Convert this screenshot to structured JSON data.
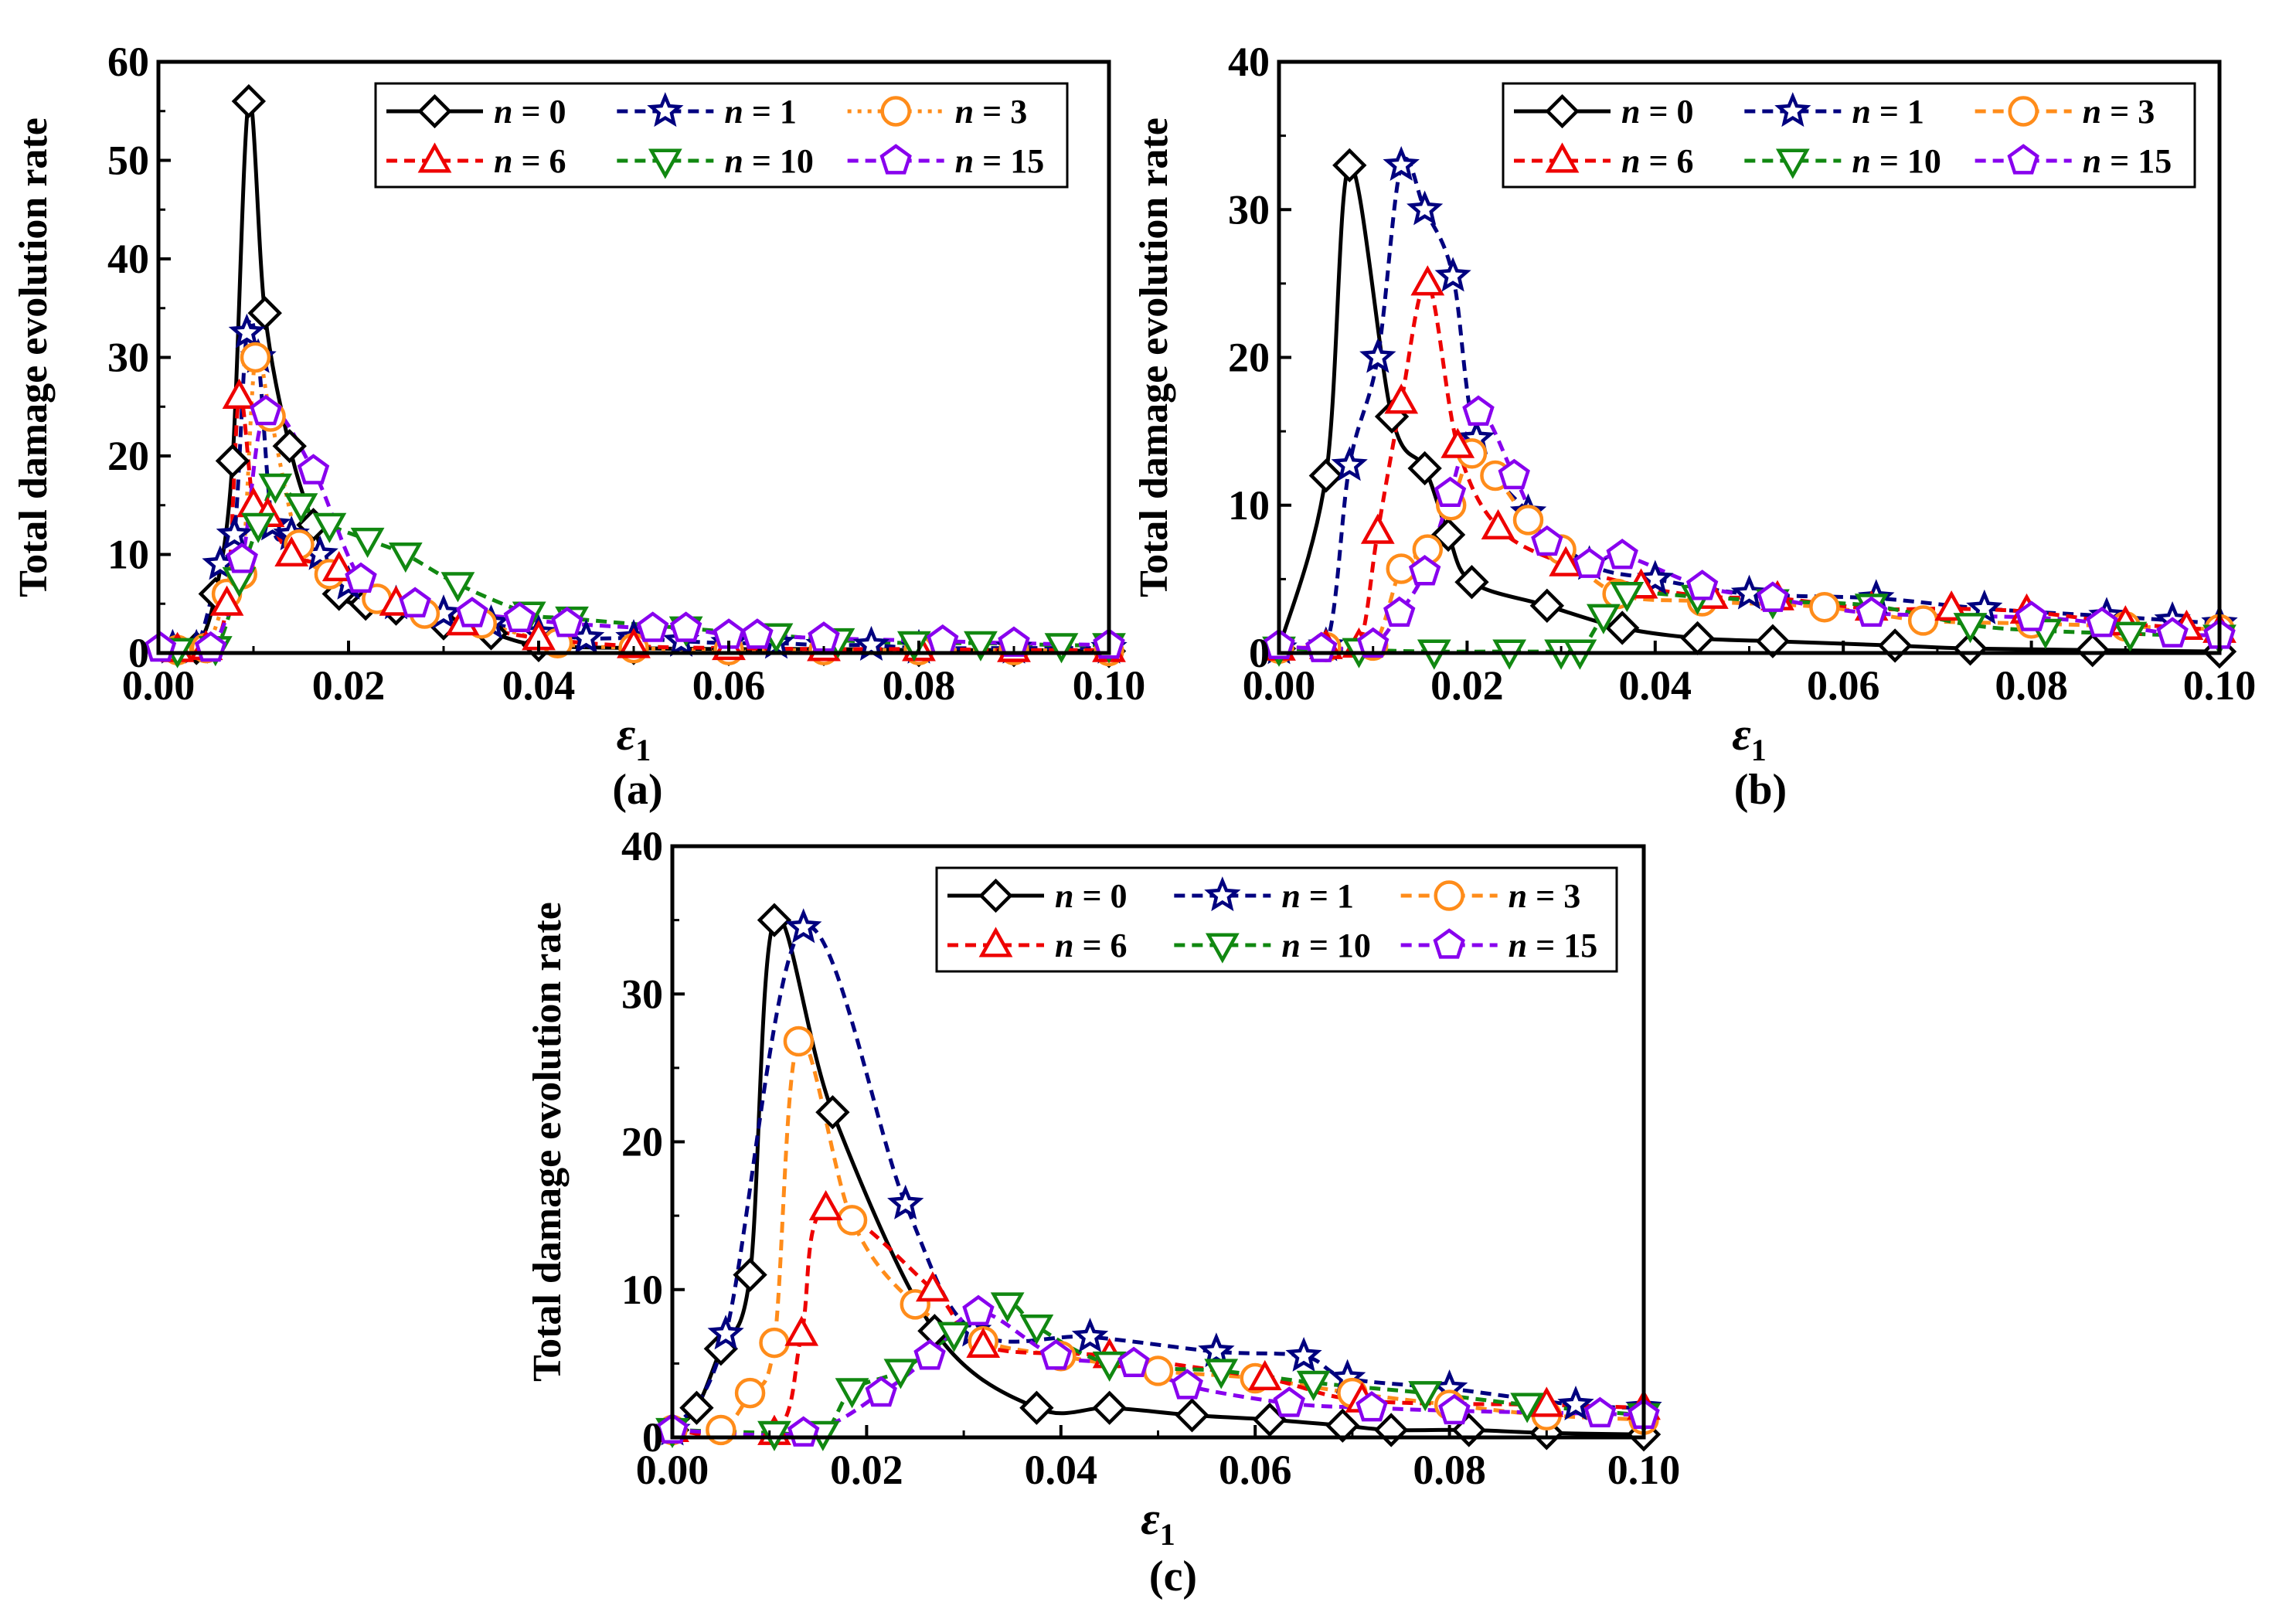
{
  "figure_labels": [
    "(a)",
    "(b)",
    "(c)"
  ],
  "chart_data": [
    {
      "type": "line",
      "panel": "(a)",
      "ylabel": "Total damage evolution rate",
      "xlabel": "ε",
      "xlabel_sub": "1",
      "xlim": [
        0,
        0.1
      ],
      "ylim": [
        0,
        60
      ],
      "xticks": [
        "0.00",
        "0.02",
        "0.04",
        "0.06",
        "0.08",
        "0.10"
      ],
      "yticks": [
        "0",
        "10",
        "20",
        "30",
        "40",
        "50",
        "60"
      ],
      "legend_position": "top-right",
      "series": [
        {
          "name": "n = 0",
          "var": "n",
          "value": "0",
          "color": "#000000",
          "marker": "diamond",
          "dash": "solid",
          "x": [
            0.002,
            0.004,
            0.006,
            0.0078,
            0.0095,
            0.0112,
            0.0138,
            0.0163,
            0.019,
            0.0218,
            0.025,
            0.03,
            0.035,
            0.04,
            0.05,
            0.06,
            0.07,
            0.08,
            0.09,
            0.1
          ],
          "y": [
            0.3,
            0.5,
            6,
            19.5,
            56,
            34.5,
            21,
            13,
            6,
            5,
            4.5,
            3,
            2,
            0.8,
            0.5,
            0.4,
            0.4,
            0.3,
            0.3,
            0.2
          ]
        },
        {
          "name": "n = 1",
          "var": "n",
          "value": "1",
          "color": "#00007f",
          "marker": "star",
          "dash": "dashed",
          "x": [
            0.0015,
            0.004,
            0.0065,
            0.008,
            0.0093,
            0.0105,
            0.012,
            0.014,
            0.017,
            0.02,
            0.025,
            0.03,
            0.035,
            0.04,
            0.045,
            0.05,
            0.055,
            0.06,
            0.065,
            0.07,
            0.075,
            0.08,
            0.09,
            0.1
          ],
          "y": [
            0.5,
            0.5,
            9,
            12,
            32.5,
            30,
            13,
            12,
            10,
            7,
            5,
            4,
            3,
            2,
            1.5,
            1.5,
            1.2,
            1,
            1,
            0.8,
            0.8,
            0.5,
            0.5,
            0.5
          ]
        },
        {
          "name": "n = 3",
          "var": "n",
          "value": "3",
          "color": "#ff8c1a",
          "marker": "circle",
          "dash": "dotted",
          "x": [
            0.002,
            0.005,
            0.0072,
            0.0088,
            0.0102,
            0.0118,
            0.0148,
            0.018,
            0.023,
            0.028,
            0.034,
            0.042,
            0.05,
            0.06,
            0.07,
            0.08,
            0.09,
            0.1
          ],
          "y": [
            0.3,
            0.5,
            6,
            8,
            30,
            24,
            11,
            8,
            5.5,
            4,
            3,
            1,
            0.5,
            0.3,
            0.3,
            0.3,
            0.3,
            0.2
          ]
        },
        {
          "name": "n = 6",
          "var": "n",
          "value": "6",
          "color": "#ee0000",
          "marker": "triangle-up",
          "dash": "dashed",
          "x": [
            0.002,
            0.005,
            0.0072,
            0.0085,
            0.01,
            0.0115,
            0.014,
            0.019,
            0.025,
            0.032,
            0.04,
            0.05,
            0.06,
            0.07,
            0.08,
            0.09,
            0.1
          ],
          "y": [
            0.3,
            0.5,
            5,
            26,
            15,
            14,
            10,
            8.5,
            5,
            3,
            1.5,
            0.7,
            0.5,
            0.4,
            0.4,
            0.3,
            0.3
          ]
        },
        {
          "name": "n = 10",
          "var": "n",
          "value": "10",
          "color": "#118811",
          "marker": "triangle-down",
          "dash": "dashed",
          "x": [
            0.002,
            0.006,
            0.0085,
            0.0105,
            0.0123,
            0.015,
            0.018,
            0.022,
            0.026,
            0.0315,
            0.039,
            0.0435,
            0.0555,
            0.065,
            0.0715,
            0.0795,
            0.0865,
            0.095,
            0.1
          ],
          "y": [
            0.3,
            0.5,
            7.5,
            13,
            17,
            15,
            13,
            11.5,
            10,
            7,
            4,
            3.5,
            2.5,
            1.8,
            1.3,
            1,
            1,
            0.8,
            0.8
          ]
        },
        {
          "name": "n = 15",
          "var": "n",
          "value": "15",
          "color": "#8800ee",
          "marker": "pentagon",
          "dash": "dashed",
          "x": [
            0.0002,
            0.0055,
            0.0088,
            0.0113,
            0.0163,
            0.0213,
            0.027,
            0.033,
            0.038,
            0.043,
            0.052,
            0.0555,
            0.06,
            0.063,
            0.07,
            0.0825,
            0.09,
            0.1
          ],
          "y": [
            0.5,
            0.5,
            9.5,
            24.5,
            18.5,
            7.5,
            5,
            4,
            3.5,
            3,
            2.5,
            2.5,
            1.8,
            1.8,
            1.5,
            1.2,
            1,
            0.8
          ]
        }
      ]
    },
    {
      "type": "line",
      "panel": "(b)",
      "ylabel": "Total damage evolution rate",
      "xlabel": "ε",
      "xlabel_sub": "1",
      "xlim": [
        0,
        0.1
      ],
      "ylim": [
        0,
        40
      ],
      "xticks": [
        "0.00",
        "0.02",
        "0.04",
        "0.06",
        "0.08",
        "0.10"
      ],
      "yticks": [
        "0",
        "10",
        "20",
        "30",
        "40"
      ],
      "legend_position": "top-right",
      "series": [
        {
          "name": "n = 0",
          "var": "n",
          "value": "0",
          "color": "#000000",
          "marker": "diamond",
          "dash": "solid",
          "x": [
            0.0,
            0.005,
            0.0075,
            0.012,
            0.0155,
            0.018,
            0.0205,
            0.0285,
            0.0365,
            0.0445,
            0.0525,
            0.0655,
            0.0735,
            0.0865,
            0.1
          ],
          "y": [
            0.3,
            12,
            33,
            16,
            12.5,
            8,
            4.8,
            3.2,
            1.7,
            1,
            0.8,
            0.5,
            0.3,
            0.2,
            0.1
          ]
        },
        {
          "name": "n = 1",
          "var": "n",
          "value": "1",
          "color": "#00007f",
          "marker": "star",
          "dash": "dashed",
          "x": [
            0.0,
            0.005,
            0.0075,
            0.0105,
            0.013,
            0.0155,
            0.0185,
            0.021,
            0.0265,
            0.033,
            0.04,
            0.05,
            0.0635,
            0.075,
            0.088,
            0.095,
            0.1
          ],
          "y": [
            0.3,
            0.5,
            12.7,
            20,
            33,
            30,
            25.5,
            14.5,
            9.5,
            6,
            5,
            4,
            3.7,
            3,
            2.5,
            2.2,
            2
          ]
        },
        {
          "name": "n = 3",
          "var": "n",
          "value": "3",
          "color": "#ff8c1a",
          "marker": "circle",
          "dash": "dashed",
          "x": [
            0.0,
            0.005,
            0.01,
            0.013,
            0.0158,
            0.0183,
            0.0205,
            0.023,
            0.0265,
            0.03,
            0.036,
            0.045,
            0.058,
            0.0685,
            0.08,
            0.09,
            0.1
          ],
          "y": [
            0.3,
            0.4,
            0.5,
            5.7,
            7,
            10,
            13.5,
            12,
            9,
            7,
            4,
            3.5,
            3.1,
            2.2,
            2,
            1.8,
            1.6
          ]
        },
        {
          "name": "n = 6",
          "var": "n",
          "value": "6",
          "color": "#ee0000",
          "marker": "triangle-up",
          "dash": "dashed",
          "x": [
            0.0,
            0.005,
            0.0085,
            0.0105,
            0.013,
            0.0158,
            0.019,
            0.0233,
            0.0305,
            0.0385,
            0.046,
            0.053,
            0.063,
            0.0715,
            0.0795,
            0.09,
            0.0965,
            0.1
          ],
          "y": [
            0.3,
            0.4,
            0.5,
            8.2,
            17,
            25,
            14,
            8.5,
            6,
            4.5,
            3.8,
            3.7,
            3,
            3,
            2.8,
            2,
            1.7,
            1.5
          ]
        },
        {
          "name": "n = 10",
          "var": "n",
          "value": "10",
          "color": "#118811",
          "marker": "triangle-down",
          "dash": "dashed",
          "x": [
            0.0,
            0.0085,
            0.0165,
            0.0245,
            0.03,
            0.032,
            0.0345,
            0.037,
            0.0445,
            0.0525,
            0.063,
            0.0735,
            0.0815,
            0.0905,
            0.1
          ],
          "y": [
            0.3,
            0.2,
            0.1,
            0.1,
            0.1,
            0.1,
            2.5,
            4,
            3.8,
            3.5,
            3.2,
            1.9,
            1.5,
            1.3,
            1.1
          ]
        },
        {
          "name": "n = 15",
          "var": "n",
          "value": "15",
          "color": "#8800ee",
          "marker": "pentagon",
          "dash": "dashed",
          "x": [
            0.0,
            0.0045,
            0.01,
            0.0128,
            0.0155,
            0.0182,
            0.0212,
            0.025,
            0.0285,
            0.033,
            0.0365,
            0.045,
            0.0525,
            0.063,
            0.08,
            0.0875,
            0.095,
            0.1
          ],
          "y": [
            0.5,
            0.3,
            0.6,
            2.7,
            5.5,
            10.8,
            16.3,
            12,
            7.5,
            6,
            6.6,
            4.5,
            3.7,
            2.7,
            2.4,
            2,
            1.3,
            1.2
          ]
        }
      ]
    },
    {
      "type": "line",
      "panel": "(c)",
      "ylabel": "Total damage evolution rate",
      "xlabel": "ε",
      "xlabel_sub": "1",
      "xlim": [
        0,
        0.1
      ],
      "ylim": [
        0,
        40
      ],
      "xticks": [
        "0.00",
        "0.02",
        "0.04",
        "0.06",
        "0.08",
        "0.10"
      ],
      "yticks": [
        "0",
        "10",
        "20",
        "30",
        "40"
      ],
      "legend_position": "top-right",
      "series": [
        {
          "name": "n = 0",
          "var": "n",
          "value": "0",
          "color": "#000000",
          "marker": "diamond",
          "dash": "solid",
          "x": [
            0.0,
            0.0025,
            0.005,
            0.008,
            0.0105,
            0.0165,
            0.027,
            0.0375,
            0.045,
            0.0535,
            0.0615,
            0.069,
            0.074,
            0.082,
            0.09,
            0.1
          ],
          "y": [
            0.5,
            2,
            6,
            11,
            35,
            22,
            7.2,
            2,
            2,
            1.5,
            1.2,
            0.8,
            0.5,
            0.5,
            0.3,
            0.2
          ]
        },
        {
          "name": "n = 1",
          "var": "n",
          "value": "1",
          "color": "#00007f",
          "marker": "star",
          "dash": "dashed",
          "x": [
            0.0,
            0.0055,
            0.0135,
            0.024,
            0.031,
            0.043,
            0.056,
            0.065,
            0.0695,
            0.08,
            0.093,
            0.1
          ],
          "y": [
            0.5,
            7,
            34.5,
            15.8,
            7.2,
            6.8,
            5.8,
            5.5,
            4,
            3.3,
            2.2,
            2
          ]
        },
        {
          "name": "n = 3",
          "var": "n",
          "value": "3",
          "color": "#ff8c1a",
          "marker": "circle",
          "dash": "dashed",
          "x": [
            0.0,
            0.005,
            0.008,
            0.0105,
            0.013,
            0.0185,
            0.025,
            0.032,
            0.04,
            0.05,
            0.06,
            0.07,
            0.08,
            0.09,
            0.1
          ],
          "y": [
            0.5,
            0.5,
            3,
            6.4,
            26.8,
            14.7,
            9,
            6.5,
            5.5,
            4.5,
            4,
            3,
            2.2,
            1.5,
            1.2
          ]
        },
        {
          "name": "n = 6",
          "var": "n",
          "value": "6",
          "color": "#ee0000",
          "marker": "triangle-up",
          "dash": "dashed",
          "x": [
            0.0,
            0.0105,
            0.0133,
            0.0158,
            0.0268,
            0.032,
            0.045,
            0.061,
            0.071,
            0.09,
            0.1
          ],
          "y": [
            0.5,
            0.3,
            7,
            15.5,
            10,
            6.2,
            5.5,
            4,
            2.5,
            2.2,
            2
          ]
        },
        {
          "name": "n = 10",
          "var": "n",
          "value": "10",
          "color": "#118811",
          "marker": "triangle-down",
          "dash": "dashed",
          "x": [
            0.0,
            0.0105,
            0.0155,
            0.0185,
            0.0235,
            0.029,
            0.0345,
            0.0375,
            0.045,
            0.0565,
            0.066,
            0.0775,
            0.088,
            0.1
          ],
          "y": [
            0.5,
            0.3,
            0.3,
            3.2,
            4.5,
            7,
            9,
            7.5,
            5,
            4.5,
            3.7,
            3,
            2.2,
            1.5
          ]
        },
        {
          "name": "n = 15",
          "var": "n",
          "value": "15",
          "color": "#8800ee",
          "marker": "pentagon",
          "dash": "dashed",
          "x": [
            0.0,
            0.0135,
            0.0215,
            0.0265,
            0.0315,
            0.0395,
            0.0475,
            0.053,
            0.0635,
            0.072,
            0.0805,
            0.0955,
            0.1
          ],
          "y": [
            0.5,
            0.3,
            3,
            5.5,
            8.5,
            5.5,
            5,
            3.5,
            2.3,
            2,
            1.8,
            1.6,
            1.5
          ]
        }
      ]
    }
  ]
}
